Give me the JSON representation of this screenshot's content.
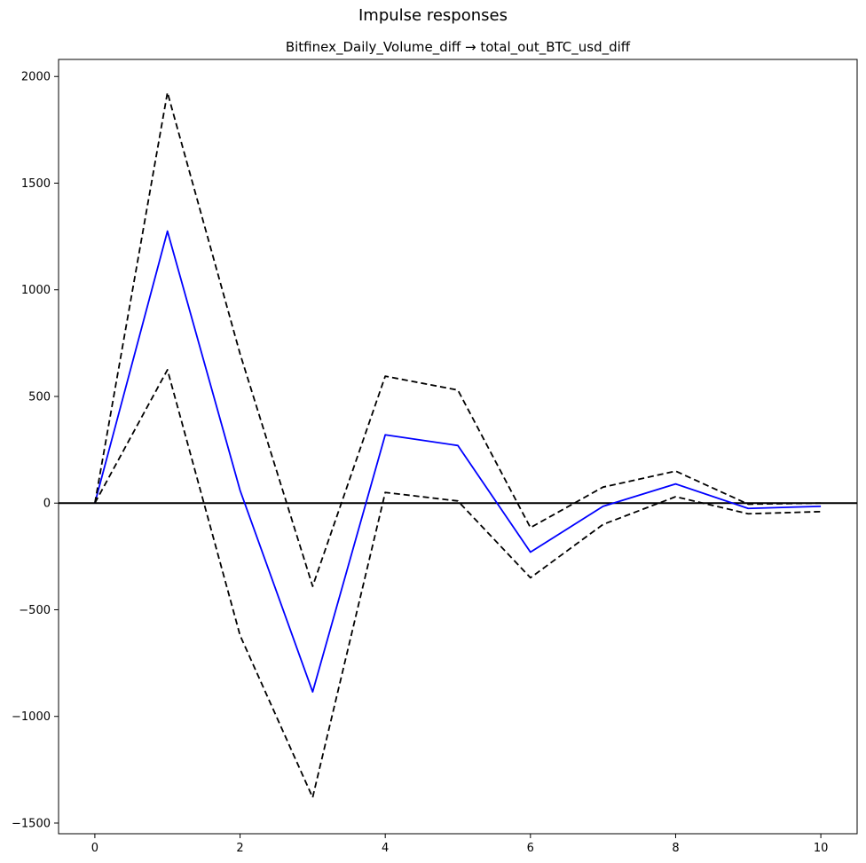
{
  "suptitle": "Impulse responses",
  "chart_data": {
    "type": "line",
    "title": "Bitfinex_Daily_Volume_diff → total_out_BTC_usd_diff",
    "xlabel": "",
    "ylabel": "",
    "xlim": [
      -0.5,
      10.5
    ],
    "ylim": [
      -1550,
      2080
    ],
    "xticks": [
      0,
      2,
      4,
      6,
      8,
      10
    ],
    "yticks": [
      -1500,
      -1000,
      -500,
      0,
      500,
      1000,
      1500,
      2000
    ],
    "ytick_labels": [
      "−1500",
      "−1000",
      "−500",
      "0",
      "500",
      "1000",
      "1500",
      "2000"
    ],
    "grid": false,
    "legend": "none",
    "x": [
      0,
      1,
      2,
      3,
      4,
      5,
      6,
      7,
      8,
      9,
      10
    ],
    "series": [
      {
        "role": "response",
        "color": "#0000ff",
        "style": "solid",
        "values": [
          0,
          1275,
          60,
          -885,
          320,
          270,
          -230,
          -15,
          90,
          -25,
          -15
        ]
      },
      {
        "role": "upper-band",
        "color": "#000000",
        "style": "dashed",
        "values": [
          0,
          1925,
          700,
          -390,
          595,
          530,
          -115,
          75,
          150,
          -5,
          0
        ]
      },
      {
        "role": "lower-band",
        "color": "#000000",
        "style": "dashed",
        "values": [
          0,
          625,
          -620,
          -1380,
          50,
          10,
          -350,
          -100,
          30,
          -50,
          -40
        ]
      }
    ],
    "zero_line": {
      "y": 0,
      "color": "#000000"
    }
  }
}
